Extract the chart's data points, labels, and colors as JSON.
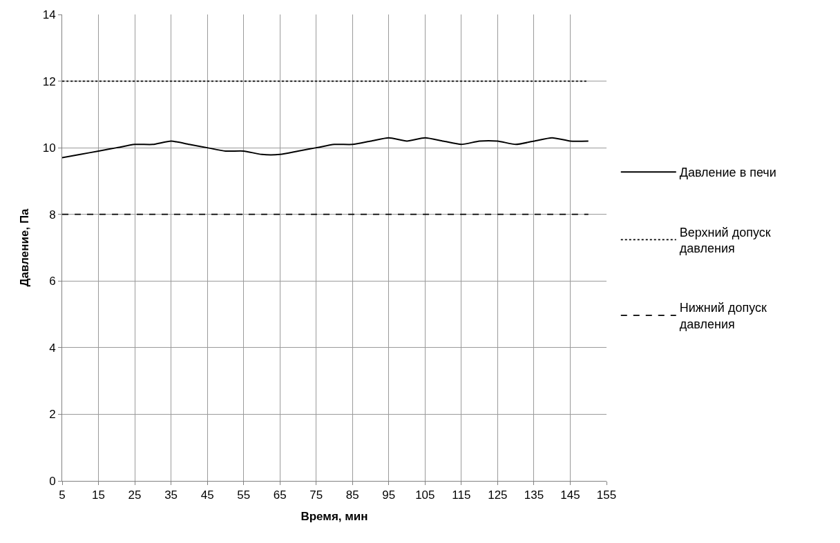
{
  "chart_data": {
    "type": "line",
    "xlabel": "Время, мин",
    "ylabel": "Давление, Па",
    "x": [
      5,
      10,
      15,
      20,
      25,
      30,
      35,
      40,
      45,
      50,
      55,
      60,
      65,
      70,
      75,
      80,
      85,
      90,
      95,
      100,
      105,
      110,
      115,
      120,
      125,
      130,
      135,
      140,
      145,
      150
    ],
    "series": [
      {
        "name": "Давление в печи",
        "color": "#000000",
        "line_style": "solid",
        "values": [
          9.7,
          9.8,
          9.9,
          10.0,
          10.1,
          10.1,
          10.2,
          10.1,
          10.0,
          9.9,
          9.9,
          9.8,
          9.8,
          9.9,
          10.0,
          10.1,
          10.1,
          10.2,
          10.3,
          10.2,
          10.3,
          10.2,
          10.1,
          10.2,
          10.2,
          10.1,
          10.2,
          10.3,
          10.2,
          10.2
        ]
      },
      {
        "name": "Верхний допуск давления",
        "color": "#000000",
        "line_style": "dotted",
        "values": [
          12,
          12,
          12,
          12,
          12,
          12,
          12,
          12,
          12,
          12,
          12,
          12,
          12,
          12,
          12,
          12,
          12,
          12,
          12,
          12,
          12,
          12,
          12,
          12,
          12,
          12,
          12,
          12,
          12,
          12
        ]
      },
      {
        "name": "Нижний допуск давления",
        "color": "#000000",
        "line_style": "dashed",
        "values": [
          8,
          8,
          8,
          8,
          8,
          8,
          8,
          8,
          8,
          8,
          8,
          8,
          8,
          8,
          8,
          8,
          8,
          8,
          8,
          8,
          8,
          8,
          8,
          8,
          8,
          8,
          8,
          8,
          8,
          8
        ]
      }
    ],
    "xlim": [
      5,
      155
    ],
    "xticks": [
      5,
      15,
      25,
      35,
      45,
      55,
      65,
      75,
      85,
      95,
      105,
      115,
      125,
      135,
      145,
      155
    ],
    "ylim": [
      0,
      14
    ],
    "yticks": [
      0,
      2,
      4,
      6,
      8,
      10,
      12,
      14
    ],
    "grid": true,
    "legend": "right",
    "marker": "none"
  }
}
